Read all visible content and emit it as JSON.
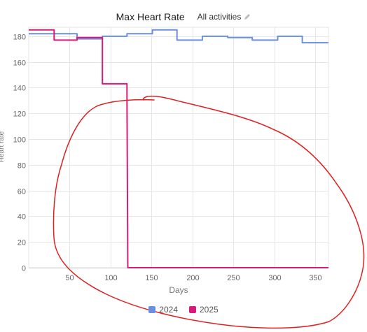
{
  "header": {
    "title": "Max Heart Rate",
    "filter_label": "All activities",
    "edit_icon": "pencil-icon"
  },
  "annotation": {
    "color": "#e02020",
    "description_icon": "freehand-circle-annotation"
  },
  "chart_data": {
    "type": "line",
    "xlabel": "Days",
    "ylabel": "Heart rate",
    "xlim": [
      0,
      366
    ],
    "ylim": [
      0,
      187
    ],
    "x_ticks": [
      50,
      100,
      150,
      200,
      250,
      300,
      350
    ],
    "y_ticks": [
      0,
      20,
      40,
      60,
      80,
      100,
      120,
      140,
      160,
      180
    ],
    "grid": true,
    "legend": "bottom",
    "series": [
      {
        "name": "2024",
        "color": "#6b8fe0",
        "points": [
          [
            0,
            182
          ],
          [
            59,
            182
          ],
          [
            59,
            178
          ],
          [
            90,
            178
          ],
          [
            90,
            180
          ],
          [
            120,
            180
          ],
          [
            120,
            182
          ],
          [
            151,
            182
          ],
          [
            151,
            185
          ],
          [
            181,
            185
          ],
          [
            181,
            177
          ],
          [
            212,
            177
          ],
          [
            212,
            180
          ],
          [
            243,
            180
          ],
          [
            243,
            179
          ],
          [
            273,
            179
          ],
          [
            273,
            177
          ],
          [
            304,
            177
          ],
          [
            304,
            180
          ],
          [
            334,
            180
          ],
          [
            334,
            175
          ],
          [
            366,
            175
          ]
        ]
      },
      {
        "name": "2025",
        "color": "#d81b7a",
        "points": [
          [
            0,
            185
          ],
          [
            31,
            185
          ],
          [
            31,
            177
          ],
          [
            59,
            177
          ],
          [
            59,
            179
          ],
          [
            90,
            179
          ],
          [
            90,
            143
          ],
          [
            120,
            143
          ],
          [
            120,
            131
          ],
          [
            121,
            0
          ],
          [
            366,
            0
          ]
        ]
      }
    ]
  }
}
